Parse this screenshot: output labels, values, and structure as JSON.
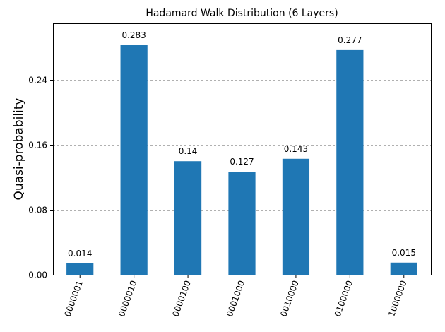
{
  "chart_data": {
    "type": "bar",
    "title": "Hadamard Walk Distribution (6 Layers)",
    "xlabel": "",
    "ylabel": "Quasi-probability",
    "categories": [
      "0000001",
      "0000010",
      "0000100",
      "0001000",
      "0010000",
      "0100000",
      "1000000"
    ],
    "values": [
      0.014,
      0.283,
      0.14,
      0.127,
      0.143,
      0.277,
      0.015
    ],
    "data_labels": [
      "0.014",
      "0.283",
      "0.14",
      "0.127",
      "0.143",
      "0.277",
      "0.015"
    ],
    "ylim": [
      0,
      0.31
    ],
    "yticks": [
      0.0,
      0.08,
      0.16,
      0.24
    ],
    "ytick_labels": [
      "0.00",
      "0.08",
      "0.16",
      "0.24"
    ],
    "grid": "horizontal-dashed",
    "bar_color": "#1f77b4",
    "grid_color": "#b0b0b0",
    "xtick_rotation": "70deg"
  }
}
